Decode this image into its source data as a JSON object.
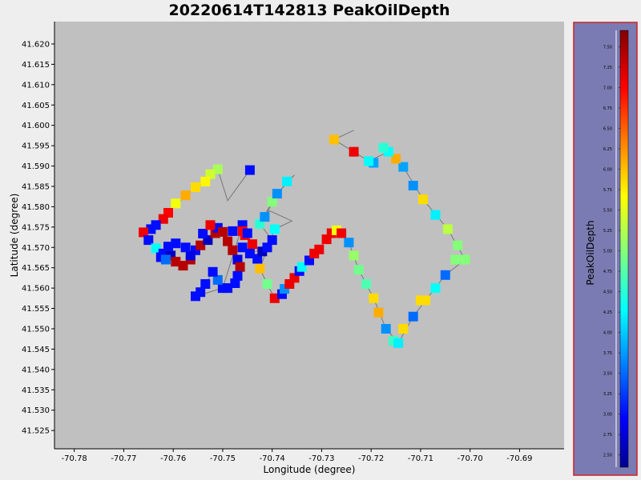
{
  "chart_data": {
    "type": "scatter",
    "title": "20220614T142813 PeakOilDepth",
    "xlabel": "Longitude (degree)",
    "ylabel": "Latitude (degree)",
    "xlim": [
      -70.784,
      -70.681
    ],
    "ylim": [
      41.5205,
      41.6255
    ],
    "xticks": [
      "-70.78",
      "-70.77",
      "-70.76",
      "-70.75",
      "-70.74",
      "-70.73",
      "-70.72",
      "-70.71",
      "-70.70",
      "-70.69"
    ],
    "yticks": [
      "41.620",
      "41.615",
      "41.610",
      "41.605",
      "41.600",
      "41.595",
      "41.590",
      "41.585",
      "41.580",
      "41.575",
      "41.570",
      "41.565",
      "41.560",
      "41.555",
      "41.550",
      "41.545",
      "41.540",
      "41.535",
      "41.530",
      "41.525"
    ],
    "colorbar": {
      "label": "PeakOilDepth",
      "min": 2.35,
      "max": 7.7,
      "ticks": [
        "2.50",
        "2.75",
        "3.00",
        "3.25",
        "3.50",
        "3.75",
        "4.00",
        "4.25",
        "4.50",
        "4.75",
        "5.00",
        "5.25",
        "5.50",
        "5.75",
        "6.00",
        "6.25",
        "6.50",
        "6.75",
        "7.00",
        "7.25",
        "7.50"
      ]
    },
    "track_style": "gray line connecting samples; square markers colored by PeakOilDepth",
    "points": [
      {
        "x": -70.7445,
        "y": 41.589,
        "v": 3.0
      },
      {
        "x": -70.751,
        "y": 41.5892,
        "v": 5.2
      },
      {
        "x": -70.7525,
        "y": 41.588,
        "v": 5.4
      },
      {
        "x": -70.7535,
        "y": 41.5862,
        "v": 5.7
      },
      {
        "x": -70.7555,
        "y": 41.5848,
        "v": 5.85
      },
      {
        "x": -70.7575,
        "y": 41.5828,
        "v": 6.1
      },
      {
        "x": -70.7595,
        "y": 41.5808,
        "v": 5.6
      },
      {
        "x": -70.761,
        "y": 41.5785,
        "v": 7.0
      },
      {
        "x": -70.762,
        "y": 41.577,
        "v": 7.1
      },
      {
        "x": -70.7635,
        "y": 41.5755,
        "v": 3.0
      },
      {
        "x": -70.7645,
        "y": 41.5745,
        "v": 3.0
      },
      {
        "x": -70.766,
        "y": 41.5737,
        "v": 7.1
      },
      {
        "x": -70.765,
        "y": 41.5718,
        "v": 3.0
      },
      {
        "x": -70.7635,
        "y": 41.5698,
        "v": 4.3
      },
      {
        "x": -70.762,
        "y": 41.5685,
        "v": 3.0
      },
      {
        "x": -70.7605,
        "y": 41.568,
        "v": 2.6
      },
      {
        "x": -70.7595,
        "y": 41.5665,
        "v": 7.4
      },
      {
        "x": -70.758,
        "y": 41.5655,
        "v": 7.4
      },
      {
        "x": -70.7565,
        "y": 41.567,
        "v": 7.4
      },
      {
        "x": -70.7555,
        "y": 41.5693,
        "v": 3.0
      },
      {
        "x": -70.7545,
        "y": 41.5705,
        "v": 7.4
      },
      {
        "x": -70.753,
        "y": 41.5718,
        "v": 2.6
      },
      {
        "x": -70.7515,
        "y": 41.5735,
        "v": 7.4
      },
      {
        "x": -70.751,
        "y": 41.5748,
        "v": 3.0
      },
      {
        "x": -70.75,
        "y": 41.5738,
        "v": 7.4
      },
      {
        "x": -70.749,
        "y": 41.5715,
        "v": 7.4
      },
      {
        "x": -70.748,
        "y": 41.5693,
        "v": 7.4
      },
      {
        "x": -70.747,
        "y": 41.567,
        "v": 2.8
      },
      {
        "x": -70.7465,
        "y": 41.5652,
        "v": 7.4
      },
      {
        "x": -70.747,
        "y": 41.563,
        "v": 3.0
      },
      {
        "x": -70.7475,
        "y": 41.5612,
        "v": 3.0
      },
      {
        "x": -70.749,
        "y": 41.56,
        "v": 3.0
      },
      {
        "x": -70.75,
        "y": 41.56,
        "v": 3.0
      },
      {
        "x": -70.751,
        "y": 41.562,
        "v": 3.5
      },
      {
        "x": -70.752,
        "y": 41.564,
        "v": 3.0
      },
      {
        "x": -70.7535,
        "y": 41.561,
        "v": 3.0
      },
      {
        "x": -70.7545,
        "y": 41.559,
        "v": 3.0
      },
      {
        "x": -70.7555,
        "y": 41.558,
        "v": 3.0
      },
      {
        "x": -70.7565,
        "y": 41.568,
        "v": 2.8
      },
      {
        "x": -70.7575,
        "y": 41.57,
        "v": 3.0
      },
      {
        "x": -70.7595,
        "y": 41.571,
        "v": 3.0
      },
      {
        "x": -70.761,
        "y": 41.5702,
        "v": 3.0
      },
      {
        "x": -70.7625,
        "y": 41.5676,
        "v": 3.0
      },
      {
        "x": -70.7615,
        "y": 41.567,
        "v": 3.5
      },
      {
        "x": -70.754,
        "y": 41.5734,
        "v": 3.0
      },
      {
        "x": -70.7525,
        "y": 41.5755,
        "v": 7.1
      },
      {
        "x": -70.748,
        "y": 41.574,
        "v": 3.0
      },
      {
        "x": -70.746,
        "y": 41.5755,
        "v": 3.0
      },
      {
        "x": -70.746,
        "y": 41.574,
        "v": 7.0
      },
      {
        "x": -70.7455,
        "y": 41.573,
        "v": 7.0
      },
      {
        "x": -70.744,
        "y": 41.5708,
        "v": 7.1
      },
      {
        "x": -70.746,
        "y": 41.57,
        "v": 3.0
      },
      {
        "x": -70.7445,
        "y": 41.5685,
        "v": 3.0
      },
      {
        "x": -70.743,
        "y": 41.5672,
        "v": 3.0
      },
      {
        "x": -70.742,
        "y": 41.569,
        "v": 2.6
      },
      {
        "x": -70.741,
        "y": 41.57,
        "v": 3.0
      },
      {
        "x": -70.74,
        "y": 41.5718,
        "v": 3.0
      },
      {
        "x": -70.745,
        "y": 41.5735,
        "v": 3.0
      },
      {
        "x": -70.7425,
        "y": 41.5758,
        "v": 4.5
      },
      {
        "x": -70.7415,
        "y": 41.5775,
        "v": 3.7
      },
      {
        "x": -70.74,
        "y": 41.5812,
        "v": 5.0
      },
      {
        "x": -70.739,
        "y": 41.5832,
        "v": 3.7
      },
      {
        "x": -70.737,
        "y": 41.5862,
        "v": 4.2
      },
      {
        "x": -70.7395,
        "y": 41.5745,
        "v": 4.3
      },
      {
        "x": -70.7425,
        "y": 41.5648,
        "v": 6.0
      },
      {
        "x": -70.741,
        "y": 41.561,
        "v": 4.9
      },
      {
        "x": -70.7395,
        "y": 41.5575,
        "v": 7.1
      },
      {
        "x": -70.738,
        "y": 41.5585,
        "v": 3.0
      },
      {
        "x": -70.7375,
        "y": 41.5598,
        "v": 3.7
      },
      {
        "x": -70.7365,
        "y": 41.561,
        "v": 7.1
      },
      {
        "x": -70.7355,
        "y": 41.5625,
        "v": 7.1
      },
      {
        "x": -70.7345,
        "y": 41.5642,
        "v": 3.0
      },
      {
        "x": -70.734,
        "y": 41.5652,
        "v": 4.3
      },
      {
        "x": -70.7325,
        "y": 41.5668,
        "v": 3.0
      },
      {
        "x": -70.7315,
        "y": 41.5685,
        "v": 7.1
      },
      {
        "x": -70.7305,
        "y": 41.5695,
        "v": 7.1
      },
      {
        "x": -70.729,
        "y": 41.572,
        "v": 7.1
      },
      {
        "x": -70.728,
        "y": 41.5735,
        "v": 7.1
      },
      {
        "x": -70.727,
        "y": 41.5742,
        "v": 5.6
      },
      {
        "x": -70.726,
        "y": 41.5735,
        "v": 7.1
      },
      {
        "x": -70.7245,
        "y": 41.5712,
        "v": 3.7
      },
      {
        "x": -70.7235,
        "y": 41.568,
        "v": 5.1
      },
      {
        "x": -70.7225,
        "y": 41.5645,
        "v": 4.9
      },
      {
        "x": -70.721,
        "y": 41.561,
        "v": 4.7
      },
      {
        "x": -70.7195,
        "y": 41.5575,
        "v": 5.85
      },
      {
        "x": -70.7185,
        "y": 41.554,
        "v": 6.1
      },
      {
        "x": -70.717,
        "y": 41.55,
        "v": 3.7
      },
      {
        "x": -70.7155,
        "y": 41.547,
        "v": 4.6
      },
      {
        "x": -70.7145,
        "y": 41.5465,
        "v": 4.2
      },
      {
        "x": -70.7135,
        "y": 41.55,
        "v": 5.85
      },
      {
        "x": -70.7115,
        "y": 41.553,
        "v": 3.5
      },
      {
        "x": -70.71,
        "y": 41.557,
        "v": 5.85
      },
      {
        "x": -70.709,
        "y": 41.557,
        "v": 5.85
      },
      {
        "x": -70.707,
        "y": 41.56,
        "v": 4.3
      },
      {
        "x": -70.705,
        "y": 41.5632,
        "v": 3.5
      },
      {
        "x": -70.703,
        "y": 41.567,
        "v": 5.0
      },
      {
        "x": -70.701,
        "y": 41.567,
        "v": 5.0
      },
      {
        "x": -70.7025,
        "y": 41.5705,
        "v": 5.0
      },
      {
        "x": -70.7045,
        "y": 41.5745,
        "v": 5.3
      },
      {
        "x": -70.707,
        "y": 41.578,
        "v": 4.2
      },
      {
        "x": -70.7095,
        "y": 41.5818,
        "v": 5.85
      },
      {
        "x": -70.7115,
        "y": 41.5852,
        "v": 3.7
      },
      {
        "x": -70.7135,
        "y": 41.5898,
        "v": 3.8
      },
      {
        "x": -70.715,
        "y": 41.5918,
        "v": 6.1
      },
      {
        "x": -70.7165,
        "y": 41.5935,
        "v": 4.3
      },
      {
        "x": -70.7175,
        "y": 41.5945,
        "v": 4.5
      },
      {
        "x": -70.7195,
        "y": 41.5908,
        "v": 3.8
      },
      {
        "x": -70.7205,
        "y": 41.5912,
        "v": 4.3
      },
      {
        "x": -70.7235,
        "y": 41.5935,
        "v": 7.1
      },
      {
        "x": -70.7275,
        "y": 41.5965,
        "v": 6.0
      }
    ],
    "track": [
      [
        -70.7445,
        41.589
      ],
      [
        -70.7475,
        41.584
      ],
      [
        -70.749,
        41.5815
      ],
      [
        -70.751,
        41.5892
      ],
      [
        -70.7535,
        41.5862
      ],
      [
        -70.7575,
        41.5828
      ],
      [
        -70.761,
        41.5785
      ],
      [
        -70.7645,
        41.5745
      ],
      [
        -70.766,
        41.5737
      ],
      [
        -70.7635,
        41.5698
      ],
      [
        -70.7605,
        41.568
      ],
      [
        -70.758,
        41.5655
      ],
      [
        -70.7555,
        41.5693
      ],
      [
        -70.753,
        41.5718
      ],
      [
        -70.751,
        41.5748
      ],
      [
        -70.748,
        41.5693
      ],
      [
        -70.7465,
        41.5652
      ],
      [
        -70.7475,
        41.5612
      ],
      [
        -70.75,
        41.56
      ],
      [
        -70.752,
        41.564
      ],
      [
        -70.7545,
        41.559
      ],
      [
        -70.7555,
        41.558
      ],
      [
        -70.75,
        41.56
      ],
      [
        -70.746,
        41.5755
      ],
      [
        -70.744,
        41.5708
      ],
      [
        -70.7445,
        41.5685
      ],
      [
        -70.741,
        41.57
      ],
      [
        -70.74,
        41.5718
      ],
      [
        -70.7425,
        41.5758
      ],
      [
        -70.74,
        41.5812
      ],
      [
        -70.737,
        41.5862
      ],
      [
        -70.7355,
        41.5878
      ],
      [
        -70.739,
        41.5832
      ],
      [
        -70.7415,
        41.5775
      ],
      [
        -70.7405,
        41.579
      ],
      [
        -70.736,
        41.5765
      ],
      [
        -70.7395,
        41.5745
      ],
      [
        -70.7425,
        41.5648
      ],
      [
        -70.741,
        41.561
      ],
      [
        -70.7395,
        41.5575
      ],
      [
        -70.738,
        41.5585
      ],
      [
        -70.7355,
        41.5625
      ],
      [
        -70.7325,
        41.5668
      ],
      [
        -70.729,
        41.572
      ],
      [
        -70.727,
        41.5742
      ],
      [
        -70.7245,
        41.5712
      ],
      [
        -70.7225,
        41.5645
      ],
      [
        -70.7195,
        41.5575
      ],
      [
        -70.717,
        41.55
      ],
      [
        -70.7145,
        41.5465
      ],
      [
        -70.7115,
        41.553
      ],
      [
        -70.709,
        41.557
      ],
      [
        -70.705,
        41.5632
      ],
      [
        -70.701,
        41.567
      ],
      [
        -70.7045,
        41.5745
      ],
      [
        -70.7095,
        41.5818
      ],
      [
        -70.7135,
        41.5898
      ],
      [
        -70.7165,
        41.5935
      ],
      [
        -70.7205,
        41.5912
      ],
      [
        -70.7235,
        41.5935
      ],
      [
        -70.7275,
        41.5965
      ],
      [
        -70.7235,
        41.5988
      ]
    ]
  },
  "colors": {
    "page_bg": "#eeeeee",
    "plot_bg": "#c0c0c0",
    "colorbar_bg": "#7b7bb3",
    "colorbar_border": "#cc2222",
    "track_line": "#777777"
  }
}
